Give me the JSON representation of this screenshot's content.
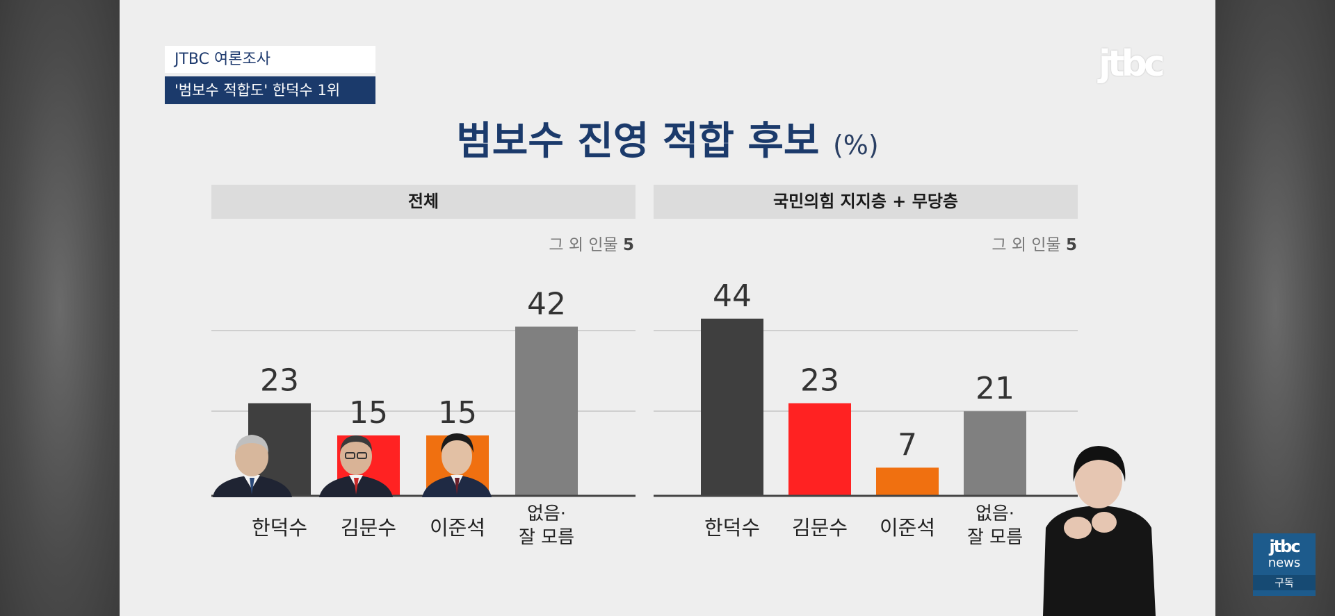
{
  "header": {
    "source_tag": "JTBC 여론조사",
    "headline_tag": "'범보수 적합도' 한덕수 1위",
    "logo_text": "jtbc"
  },
  "title": "범보수 진영 적합 후보",
  "title_unit": "(%)",
  "corner_badge": {
    "line1": "jtbc",
    "line2": "news",
    "line3": "구독"
  },
  "colors": {
    "dark": "#3f3f3f",
    "red": "#ff2222",
    "orange": "#f07010",
    "gray": "#808080",
    "navy": "#1b3a6b"
  },
  "chart_data": [
    {
      "type": "bar",
      "panel_title": "전체",
      "others_note": "그 외 인물",
      "others_value": "5",
      "categories": [
        "한덕수",
        "김문수",
        "이준석",
        "없음·\n잘 모름"
      ],
      "values": [
        23,
        15,
        15,
        42
      ],
      "bar_colors": [
        "#3f3f3f",
        "#ff2222",
        "#f07010",
        "#808080"
      ],
      "ylim": [
        0,
        50
      ],
      "grid": true
    },
    {
      "type": "bar",
      "panel_title": "국민의힘 지지층 + 무당층",
      "others_note": "그 외 인물",
      "others_value": "5",
      "categories": [
        "한덕수",
        "김문수",
        "이준석",
        "없음·\n잘 모름"
      ],
      "values": [
        44,
        23,
        7,
        21
      ],
      "bar_colors": [
        "#3f3f3f",
        "#ff2222",
        "#f07010",
        "#808080"
      ],
      "ylim": [
        0,
        50
      ],
      "grid": true
    }
  ]
}
